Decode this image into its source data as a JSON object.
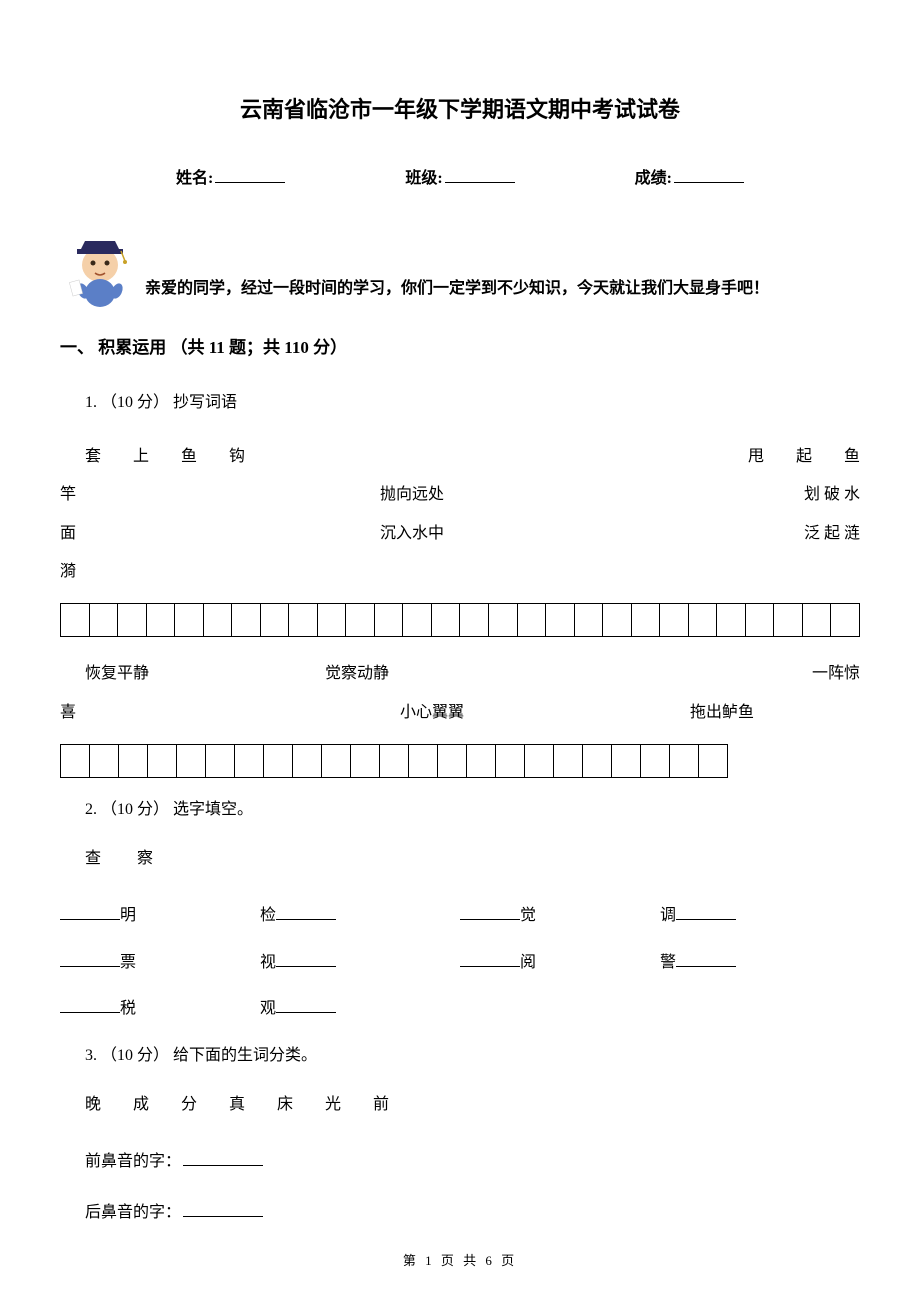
{
  "title": "云南省临沧市一年级下学期语文期中考试试卷",
  "info": {
    "name_label": "姓名:",
    "class_label": "班级:",
    "score_label": "成绩:"
  },
  "greeting": "亲爱的同学，经过一段时间的学习，你们一定学到不少知识，今天就让我们大显身手吧！",
  "section1": {
    "header": "一、 积累运用 （共 11 题；共 110 分）",
    "q1": {
      "label": "1.  （10 分） 抄写词语",
      "words_a": "套　　上　　鱼　　钩",
      "words_b": "甩　　起　　鱼",
      "line2_left": "竿",
      "line2_mid": "抛向远处",
      "line2_right": "划 破 水",
      "line3_left": "面",
      "line3_mid": "沉入水中",
      "line3_right": "泛 起 涟",
      "line4_left": "漪",
      "boxes1_count": 28,
      "phrase2_a": "恢复平静",
      "phrase2_b": "觉察动静",
      "phrase2_c": "一阵惊",
      "phrase3_a": "喜",
      "phrase3_b": "小心翼翼",
      "phrase3_c": "拖出鲈鱼",
      "boxes2_count": 23
    },
    "q2": {
      "label": "2.  （10 分） 选字填空。",
      "options": "查　　察",
      "row1": [
        "明",
        "检",
        "觉",
        "调"
      ],
      "row2": [
        "票",
        "视",
        "阅",
        "警"
      ],
      "row3": [
        "税",
        "观"
      ]
    },
    "q3": {
      "label": "3.  （10 分） 给下面的生词分类。",
      "chars": "晚　　成　　分　　真　　床　　光　　前",
      "front": "前鼻音的字：",
      "back": "后鼻音的字："
    }
  },
  "footer": "第 1 页 共 6 页",
  "colors": {
    "text": "#000000",
    "bg": "#ffffff",
    "mascot_hat": "#2a2a5e",
    "mascot_face": "#f5d0a9",
    "mascot_body": "#5b7fc7"
  }
}
